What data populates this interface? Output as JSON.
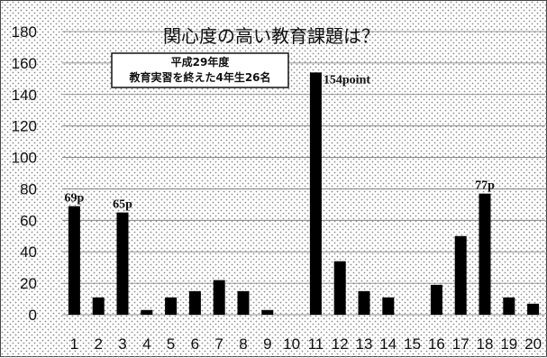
{
  "chart_data": {
    "type": "bar",
    "title": "関心度の高い教育課題は？",
    "annotation_lines": [
      "平成29年度",
      "教育実習を終えた4年生26名"
    ],
    "categories": [
      "1",
      "2",
      "3",
      "4",
      "5",
      "6",
      "7",
      "8",
      "9",
      "10",
      "11",
      "12",
      "13",
      "14",
      "15",
      "16",
      "17",
      "18",
      "19",
      "20"
    ],
    "values": [
      69,
      11,
      65,
      3,
      11,
      15,
      22,
      15,
      3,
      0,
      154,
      34,
      15,
      11,
      0,
      19,
      50,
      77,
      11,
      7
    ],
    "data_labels": [
      {
        "index": 0,
        "text": "69p"
      },
      {
        "index": 2,
        "text": "65p"
      },
      {
        "index": 10,
        "text": "154point"
      },
      {
        "index": 17,
        "text": "77p"
      }
    ],
    "y_ticks": [
      "0",
      "20",
      "40",
      "60",
      "80",
      "100",
      "120",
      "140",
      "160",
      "180"
    ],
    "ylim": [
      0,
      180
    ],
    "grid": true,
    "bar_color": "#000000",
    "plot_pattern": "dotted"
  }
}
